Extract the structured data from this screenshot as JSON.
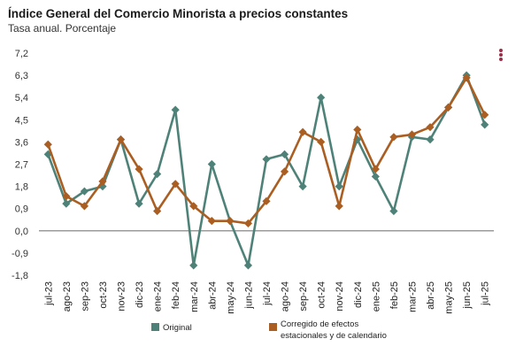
{
  "header": {
    "title": "Índice General del Comercio Minorista a precios constantes",
    "subtitle": "Tasa anual. Porcentaje"
  },
  "menu_icon": "kebab-menu-icon",
  "colors": {
    "original": "#4e8278",
    "corregido": "#ab5e22",
    "zero": "#7a7a7a"
  },
  "chart_data": {
    "type": "line",
    "title": "Índice General del Comercio Minorista a precios constantes",
    "subtitle": "Tasa anual. Porcentaje",
    "categories": [
      "jul-23",
      "ago-23",
      "sep-23",
      "oct-23",
      "nov-23",
      "dic-23",
      "ene-24",
      "feb-24",
      "mar-24",
      "abr-24",
      "may-24",
      "jun-24",
      "jul-24",
      "ago-24",
      "sep-24",
      "oct-24",
      "nov-24",
      "dic-24",
      "ene-25",
      "feb-25",
      "mar-25",
      "abr-25",
      "may-25",
      "jun-25",
      "jul-25"
    ],
    "y_ticks": [
      "7,2",
      "6,3",
      "5,4",
      "4,5",
      "3,6",
      "2,7",
      "1,8",
      "0,9",
      "0,0",
      "-0,9",
      "-1,8"
    ],
    "ylim": [
      -1.8,
      7.2
    ],
    "series": [
      {
        "name": "Original",
        "values": [
          3.1,
          1.1,
          1.6,
          1.8,
          3.7,
          1.1,
          2.3,
          4.9,
          -1.4,
          2.7,
          0.4,
          -1.4,
          2.9,
          3.1,
          1.8,
          5.4,
          1.8,
          3.7,
          2.2,
          0.8,
          3.8,
          3.7,
          5.0,
          6.3,
          4.3
        ]
      },
      {
        "name": "Corregido de efectos estacionales y de calendario",
        "values": [
          3.5,
          1.4,
          1.0,
          2.0,
          3.7,
          2.5,
          0.8,
          1.9,
          1.0,
          0.4,
          0.4,
          0.3,
          1.2,
          2.4,
          4.0,
          3.6,
          1.0,
          4.1,
          2.5,
          3.8,
          3.9,
          4.2,
          5.0,
          6.2,
          4.7
        ]
      }
    ],
    "legend": {
      "position": "bottom",
      "items": [
        "Original",
        "Corregido de efectos",
        "estacionales y de calendario"
      ]
    },
    "grid": false
  }
}
